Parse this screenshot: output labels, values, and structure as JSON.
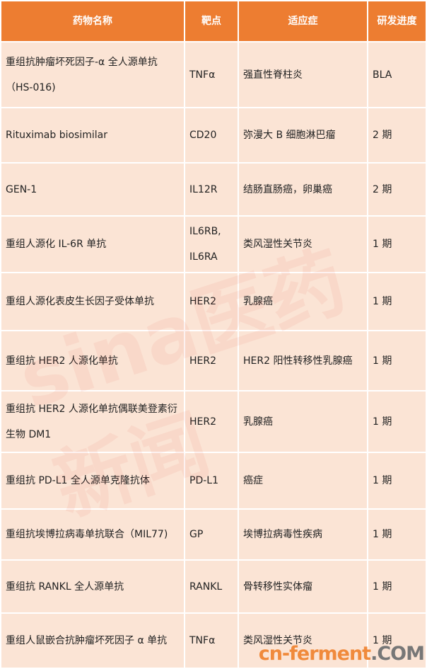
{
  "table": {
    "headers": [
      "药物名称",
      "靶点",
      "适应症",
      "研发进度"
    ],
    "rows": [
      {
        "name": "重组抗肿瘤坏死因子-α 全人源单抗（HS-016)",
        "target": "TNFα",
        "indication": "强直性脊柱炎",
        "stage": "BLA"
      },
      {
        "name": "Rituximab biosimilar",
        "target": "CD20",
        "indication": "弥漫大 B 细胞淋巴瘤",
        "stage": "2 期"
      },
      {
        "name": "GEN-1",
        "target": "IL12R",
        "indication": "结肠直肠癌，卵巢癌",
        "stage": "2 期"
      },
      {
        "name": "重组人源化 IL-6R 单抗",
        "target": "IL6RB, IL6RA",
        "indication": "类风湿性关节炎",
        "stage": "1 期"
      },
      {
        "name": "重组人源化表皮生长因子受体单抗",
        "target": "HER2",
        "indication": "乳腺癌",
        "stage": "1 期"
      },
      {
        "name": "重组抗 HER2 人源化单抗",
        "target": "HER2",
        "indication": "HER2 阳性转移性乳腺癌",
        "stage": "1 期"
      },
      {
        "name": "重组抗 HER2 人源化单抗偶联美登素衍生物 DM1",
        "target": "HER2",
        "indication": "乳腺癌",
        "stage": "1 期"
      },
      {
        "name": "重组抗 PD-L1 全人源单克隆抗体",
        "target": "PD-L1",
        "indication": "癌症",
        "stage": "1 期"
      },
      {
        "name": "重组抗埃博拉病毒单抗联合（MIL77)",
        "target": "GP",
        "indication": "埃博拉病毒性疾病",
        "stage": "1 期"
      },
      {
        "name": "重组抗 RANKL 全人源单抗",
        "target": "RANKL",
        "indication": "骨转移性实体瘤",
        "stage": "1 期"
      },
      {
        "name": "重组人鼠嵌合抗肿瘤坏死因子 α 单抗",
        "target": "TNFα",
        "indication": "类风湿性关节炎",
        "stage": "1 期"
      }
    ]
  },
  "watermark": {
    "part1": "cn-ferment",
    "part2": ".COM",
    "sina": "sina医药新闻"
  },
  "colors": {
    "header": "#ed7d31",
    "cell": "#fbe4d5"
  }
}
